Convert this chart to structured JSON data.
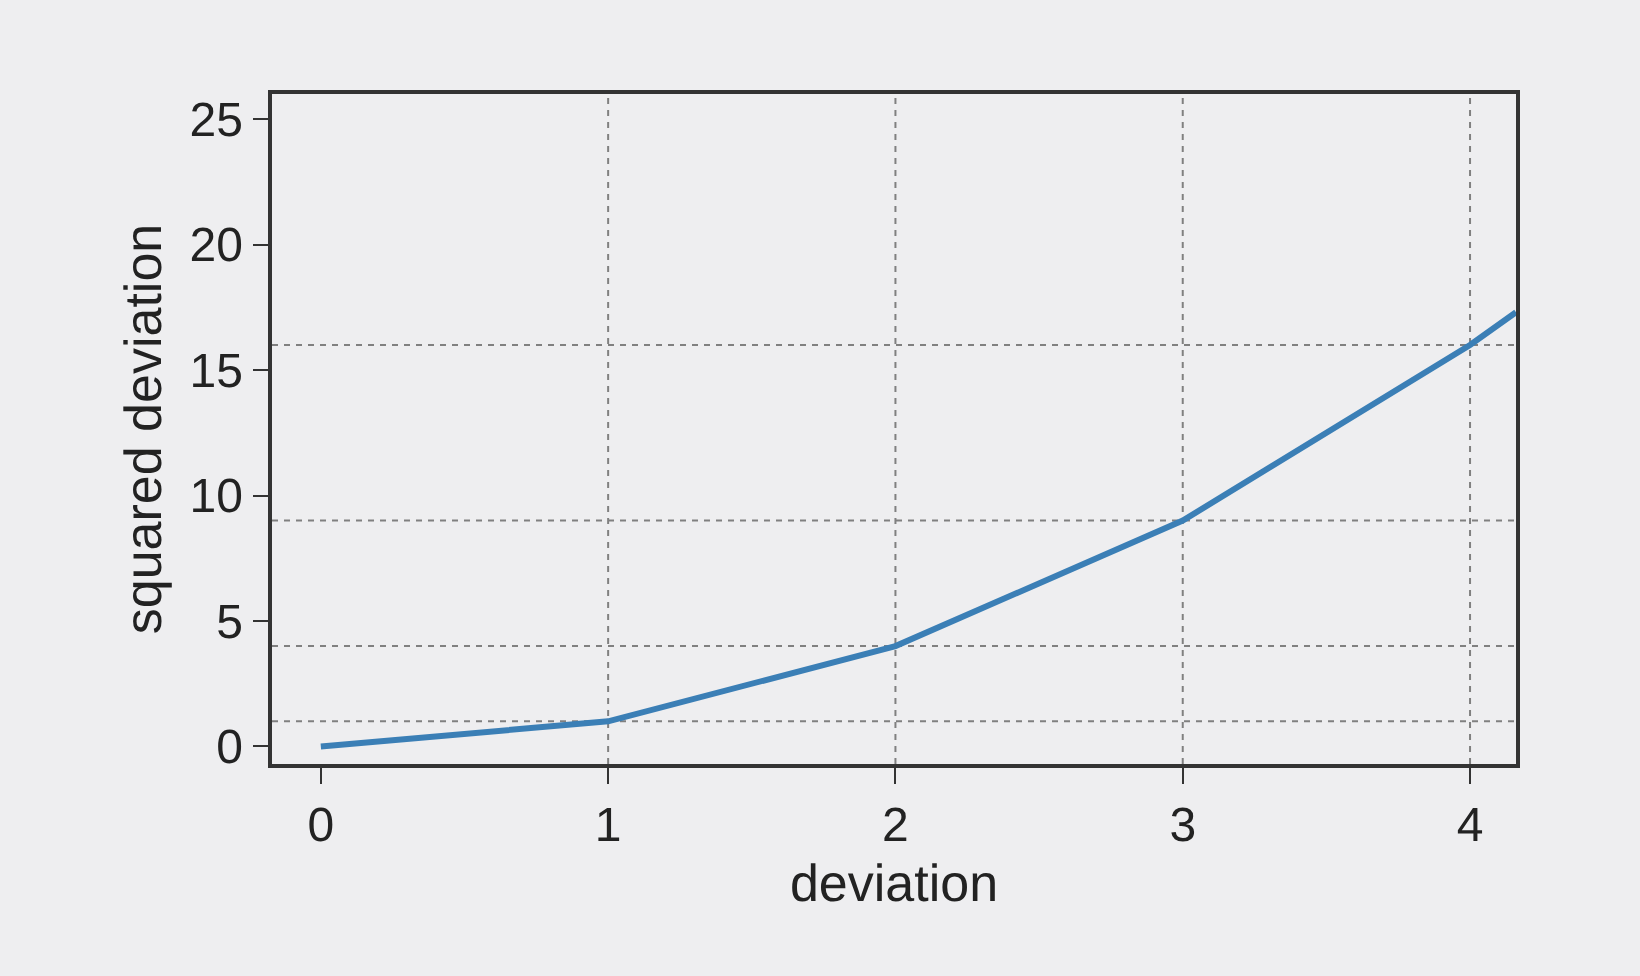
{
  "chart_data": {
    "type": "line",
    "xlabel": "deviation",
    "ylabel": "squared deviation",
    "x": [
      0,
      1,
      2,
      3,
      4,
      4.16
    ],
    "series": [
      {
        "color": "#3b7fb6",
        "values": [
          0,
          1,
          4,
          9,
          16,
          17.3
        ]
      }
    ],
    "xlim": [
      -0.17,
      4.16
    ],
    "ylim": [
      -0.7,
      26
    ],
    "xticks": [
      0,
      1,
      2,
      3,
      4
    ],
    "yticks": [
      0,
      5,
      10,
      15,
      20,
      25
    ],
    "grid": false,
    "marker": "none",
    "line_style": "solid",
    "ref_lines": [
      {
        "axis": "x",
        "value": 1,
        "color": "#808080",
        "line_style": "dotted"
      },
      {
        "axis": "x",
        "value": 2,
        "color": "#808080",
        "line_style": "dotted"
      },
      {
        "axis": "x",
        "value": 3,
        "color": "#808080",
        "line_style": "dotted"
      },
      {
        "axis": "x",
        "value": 4,
        "color": "#808080",
        "line_style": "dotted"
      },
      {
        "axis": "y",
        "value": 1,
        "color": "#808080",
        "line_style": "dotted"
      },
      {
        "axis": "y",
        "value": 4,
        "color": "#808080",
        "line_style": "dotted"
      },
      {
        "axis": "y",
        "value": 9,
        "color": "#808080",
        "line_style": "dotted"
      },
      {
        "axis": "y",
        "value": 16,
        "color": "#808080",
        "line_style": "dotted"
      }
    ]
  }
}
